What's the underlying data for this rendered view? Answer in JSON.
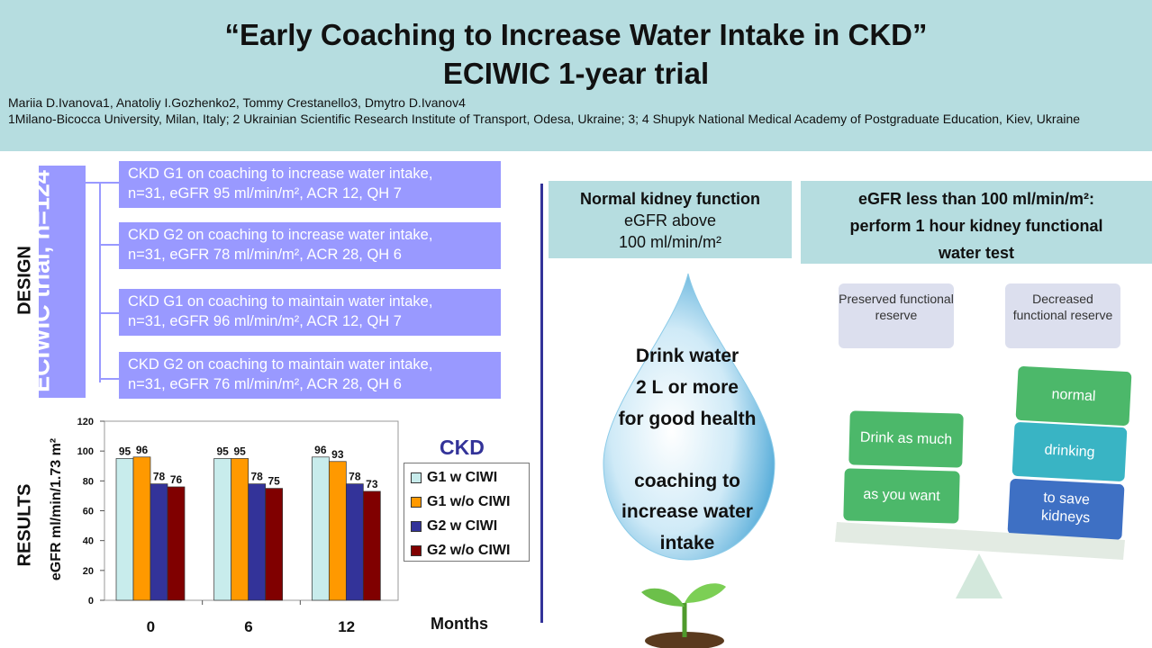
{
  "header": {
    "title_line1": "“Early Coaching to Increase Water Intake in CKD”",
    "title_line2": "ECIWIC 1-year trial",
    "authors": "Mariia D.Ivanova1,  Anatoliy I.Gozhenko2,  Tommy  Crestanello3,  Dmytro D.Ivanov4",
    "affiliations": "1Milano-Bicocca University,  Milan, Italy;  2 Ukrainian Scientific Research Institute  of Transport,  Odesa, Ukraine;  3;  4 Shupyk  National Medical Academy of Postgraduate Education, Kiev, Ukraine"
  },
  "design": {
    "section_label": "DESIGN",
    "trial_label": "ECIWIC trial, n=124",
    "groups": [
      {
        "line1": "CKD G1 on coaching to increase water intake,",
        "line2": "n=31, eGFR 95 ml/min/m², ACR 12, QH 7"
      },
      {
        "line1": "CKD G2 on coaching to increase water intake,",
        "line2": "n=31, eGFR 78 ml/min/m², ACR 28, QH 6"
      },
      {
        "line1": "CKD G1 on coaching to maintain water intake,",
        "line2": "n=31, eGFR 96 ml/min/m², ACR 12, QH 7"
      },
      {
        "line1": "CKD G2 on coaching to maintain water intake,",
        "line2": "n=31, eGFR 76 ml/min/m², ACR 28, QH 6"
      }
    ]
  },
  "results": {
    "section_label": "RESULTS",
    "legend_title": "CKD"
  },
  "chart_data": {
    "type": "bar",
    "categories": [
      "0",
      "6",
      "12"
    ],
    "xlabel": "Months",
    "ylabel": "eGFR ml/min/1.73 m²",
    "ylim": [
      0,
      120
    ],
    "yticks": [
      0,
      20,
      40,
      60,
      80,
      100,
      120
    ],
    "grid": false,
    "legend_position": "right",
    "series": [
      {
        "name": "G1 w CIWI",
        "values": [
          95,
          95,
          96
        ],
        "color": "#c8ecec"
      },
      {
        "name": "G1 w/o CIWI",
        "values": [
          96,
          95,
          93
        ],
        "color": "#ff9900"
      },
      {
        "name": "G2 w CIWI",
        "values": [
          78,
          78,
          78
        ],
        "color": "#333399"
      },
      {
        "name": "G2 w/o CIWI",
        "values": [
          76,
          75,
          73
        ],
        "color": "#800000"
      }
    ]
  },
  "normal": {
    "heading": "Normal kidney function",
    "line2": "eGFR above",
    "line3": "100 ml/min/m²",
    "drop_line1": "Drink water",
    "drop_line2": "2 L or more",
    "drop_line3": "for good health",
    "drop_line4": "coaching to",
    "drop_line5": "increase water",
    "drop_line6": "intake"
  },
  "test": {
    "heading_line1": "eGFR less than 100 ml/min/m²:",
    "heading_line2": "perform 1 hour kidney functional",
    "heading_line3": "water test",
    "preserved": "Preserved functional reserve",
    "decreased": "Decreased functional reserve",
    "left_stack": [
      "Drink as much",
      "as you want"
    ],
    "right_stack": [
      "normal",
      "drinking",
      "to save kidneys"
    ]
  },
  "colors": {
    "header_bg": "#b6dde0",
    "design_box": "#9999ff",
    "accent_dark": "#333399",
    "green": "#4cb86a",
    "teal": "#39b4c4",
    "blue": "#3e70c4"
  }
}
